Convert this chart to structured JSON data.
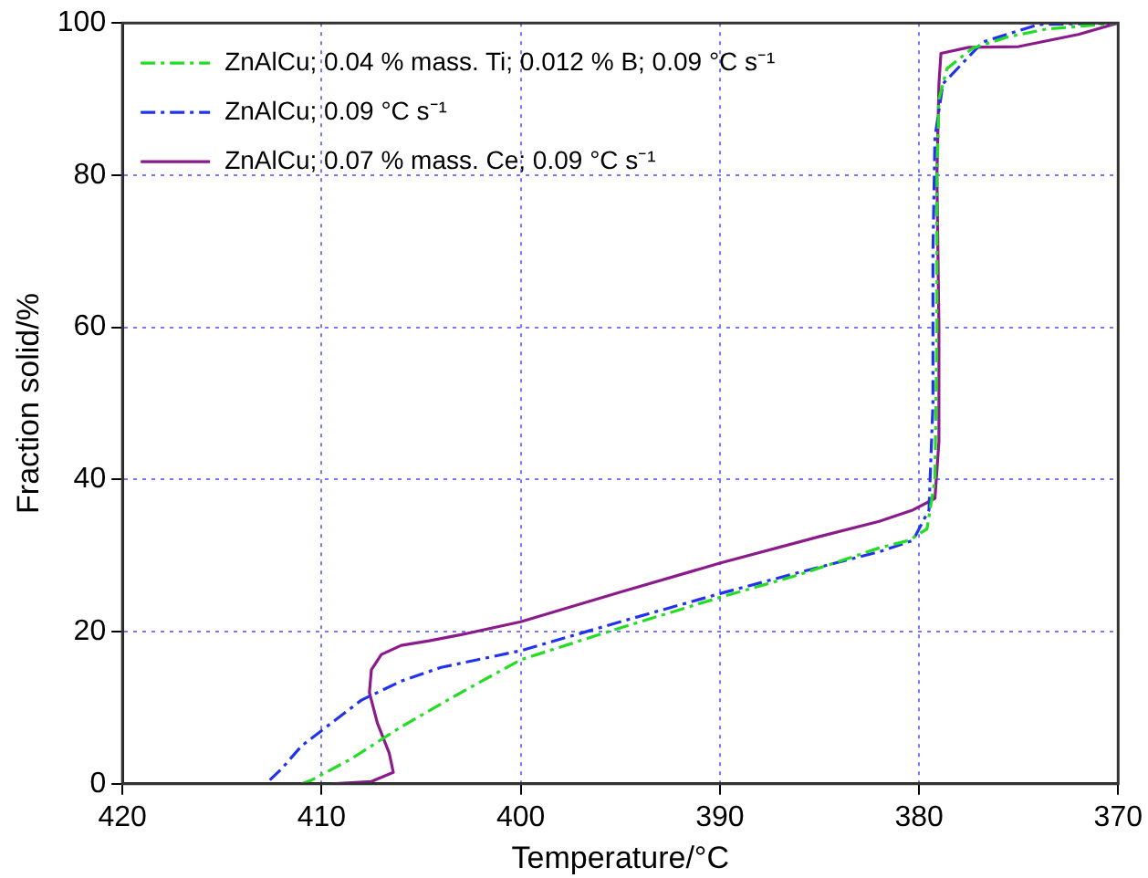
{
  "chart_data": {
    "type": "line",
    "xlabel": "Temperature/°C",
    "ylabel": "Fraction solid/%",
    "xlim": [
      420,
      370
    ],
    "xticks": [
      420,
      410,
      400,
      390,
      380,
      370
    ],
    "ylim": [
      0,
      100
    ],
    "yticks": [
      0,
      20,
      40,
      60,
      80,
      100
    ],
    "grid": true,
    "legend": "top left",
    "marker": "none",
    "series": [
      {
        "name": "ZnAlCu; 0.04 % mass. Ti; 0.012 % B; 0.09 °C s⁻¹",
        "color": "#22dd22",
        "line_style": "dashed",
        "x": [
          411,
          410.5,
          408.5,
          406,
          403,
          400,
          395,
          390,
          386,
          382,
          380.5,
          379.6,
          379.2,
          379.1,
          379.1,
          379,
          378.6,
          377.3,
          375.5,
          373.6,
          370
        ],
        "values": [
          0,
          0.5,
          3.3,
          7.5,
          12,
          16.3,
          20.5,
          24.5,
          27.5,
          31,
          32,
          33.5,
          40,
          60,
          80,
          90,
          94,
          96.7,
          98.2,
          99.2,
          100
        ]
      },
      {
        "name": "ZnAlCu; 0.09 °C s⁻¹",
        "color": "#2233ee",
        "line_style": "dashed",
        "x": [
          412.6,
          412,
          411,
          410,
          408,
          406,
          404,
          400,
          395,
          390,
          386,
          382,
          380.3,
          379.5,
          379.3,
          379.3,
          379.2,
          378.8,
          376.8,
          374,
          370
        ],
        "values": [
          0.5,
          2,
          5,
          7,
          11,
          13.5,
          15.3,
          17.5,
          21.3,
          25,
          27.8,
          30.5,
          32,
          36,
          50,
          70,
          85,
          92,
          97.5,
          99.8,
          100
        ]
      },
      {
        "name": "ZnAlCu; 0.07 % mass. Ce; 0.09 °C s⁻¹",
        "color": "#8b1a8b",
        "line_style": "solid",
        "x": [
          409.5,
          407.5,
          406.4,
          406.6,
          407.2,
          407.6,
          407.5,
          407,
          406,
          404.6,
          403,
          400,
          395,
          390,
          385,
          382,
          380.3,
          379.2,
          379,
          379,
          379.1,
          379,
          378.9,
          377.5,
          375,
          372,
          370
        ],
        "values": [
          0,
          0.3,
          1.5,
          4,
          8,
          12,
          15,
          17,
          18.2,
          18.8,
          19.6,
          21.3,
          25.2,
          29,
          32.5,
          34.5,
          36,
          37.5,
          45,
          60,
          80,
          92,
          96,
          96.8,
          96.9,
          98.5,
          100
        ]
      }
    ]
  }
}
